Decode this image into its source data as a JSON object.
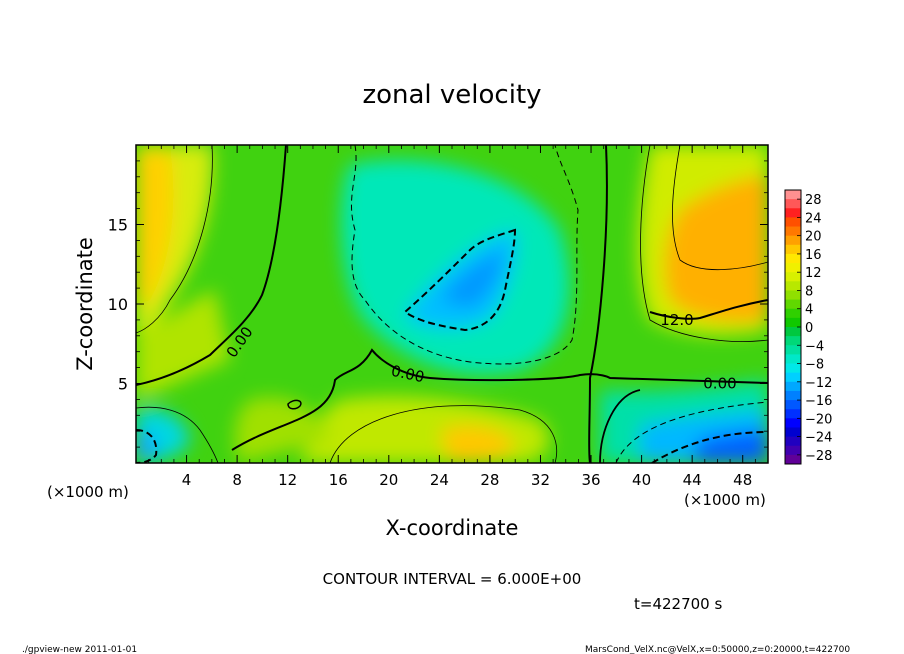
{
  "chart_data": {
    "type": "heatmap",
    "title": "zonal velocity",
    "xlabel": "X-coordinate",
    "ylabel": "Z-coordinate",
    "x_unit": "(×1000 m)",
    "y_unit": "(×1000 m)",
    "xlim": [
      0,
      50
    ],
    "ylim": [
      0,
      20
    ],
    "x_ticks": [
      4,
      8,
      12,
      16,
      20,
      24,
      28,
      32,
      36,
      40,
      44,
      48
    ],
    "y_ticks": [
      5,
      10,
      15
    ],
    "colorbar": {
      "labels": [
        "28",
        "24",
        "20",
        "16",
        "12",
        "8",
        "4",
        "0",
        "−4",
        "−8",
        "−12",
        "−16",
        "−20",
        "−24",
        "−28"
      ],
      "levels": [
        30,
        28,
        26,
        24,
        22,
        20,
        18,
        16,
        14,
        12,
        10,
        8,
        6,
        4,
        2,
        0,
        -2,
        -4,
        -6,
        -8,
        -10,
        -12,
        -14,
        -16,
        -18,
        -20,
        -22,
        -24,
        -26,
        -28,
        -30
      ],
      "colors": [
        "#ff9090",
        "#ff5858",
        "#ff2020",
        "#ff5000",
        "#ff7800",
        "#ffa000",
        "#ffc800",
        "#ffe800",
        "#f0f000",
        "#d8f000",
        "#b8e800",
        "#90e000",
        "#60d800",
        "#30d000",
        "#10c800",
        "#00c840",
        "#00d878",
        "#00e0a0",
        "#00e8c8",
        "#00e8e8",
        "#00d0ff",
        "#00a8ff",
        "#0080ff",
        "#0058ff",
        "#0030ff",
        "#0000ff",
        "#0000d0",
        "#2000c0",
        "#4000b0",
        "#600098"
      ]
    },
    "contour_labels": [
      {
        "text": "0.00",
        "x": 8.2,
        "z": 7.6,
        "rotate": -55
      },
      {
        "text": "0.00",
        "x": 21.5,
        "z": 5.6,
        "rotate": 12
      },
      {
        "text": "0.00",
        "x": 46.2,
        "z": 5.0,
        "rotate": 0
      },
      {
        "text": "12.0",
        "x": 42.8,
        "z": 9.0,
        "rotate": 0
      }
    ],
    "annotation": "CONTOUR INTERVAL = 6.000E+00",
    "time_label": "t=422700 s"
  },
  "footer": {
    "left": "./gpview-new  2011-01-01",
    "right": "MarsCond_VelX.nc@VelX,x=0:50000,z=0:20000,t=422700"
  }
}
